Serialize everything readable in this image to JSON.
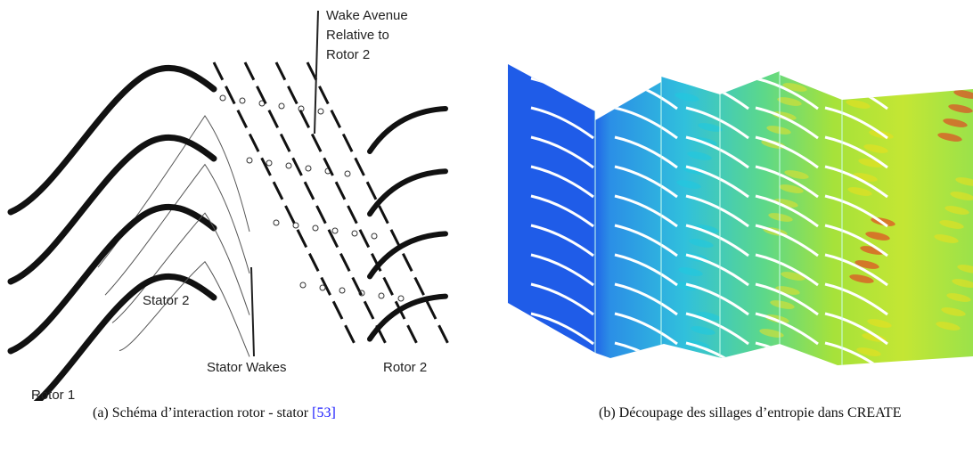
{
  "panel_a": {
    "labels": {
      "wake_avenue": [
        "Wake Avenue",
        "Relative to",
        "Rotor 2"
      ],
      "stator_2": "Stator 2",
      "stator_wakes": "Stator Wakes",
      "rotor_2": "Rotor 2",
      "rotor_1": "Rotor 1"
    },
    "caption": {
      "text": "(a) Schéma d’interaction rotor - stator ",
      "ref": "[53]"
    }
  },
  "panel_b": {
    "caption": {
      "text": "(b) Découpage des sillages d’entropie dans CREATE"
    }
  }
}
